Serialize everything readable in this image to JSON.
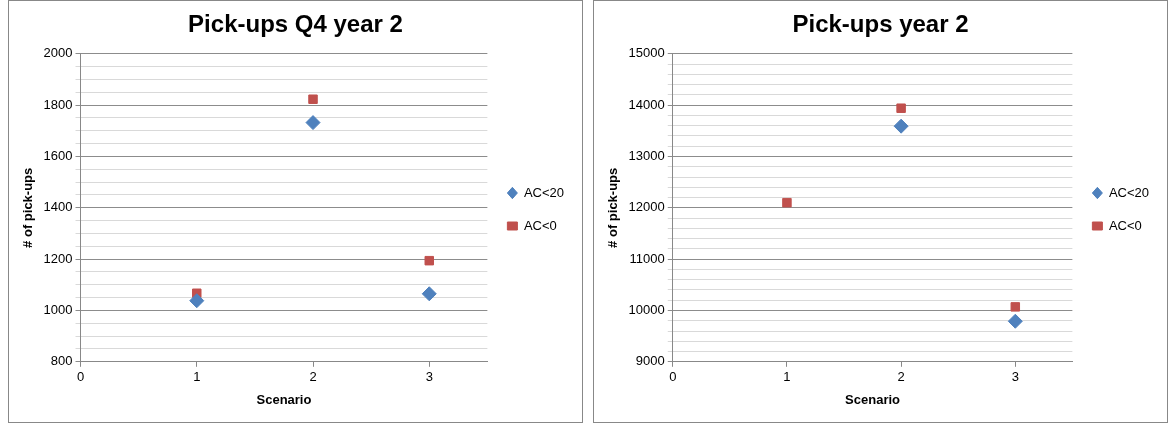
{
  "chart_data": [
    {
      "type": "scatter",
      "title": "Pick-ups Q4 year 2",
      "xlabel": "Scenario",
      "ylabel": "# of pick-ups",
      "x": [
        1,
        2,
        3
      ],
      "series": [
        {
          "name": "AC<20",
          "color": "#4f81bd",
          "marker": "diamond",
          "values": [
            1038,
            1732,
            1065
          ]
        },
        {
          "name": "AC<0",
          "color": "#c0504d",
          "marker": "square",
          "values": [
            1067,
            1823,
            1194
          ]
        }
      ],
      "xlim": [
        0,
        3.5
      ],
      "xticks": [
        0,
        1,
        2,
        3
      ],
      "ylim": [
        800,
        2000
      ],
      "yticks": [
        800,
        {
          "value": 850,
          "label": null
        },
        {
          "value": 900,
          "label": null
        },
        {
          "value": 950,
          "label": null
        },
        1000,
        {
          "value": 1050,
          "label": null
        },
        {
          "value": 1100,
          "label": null
        },
        {
          "value": 1150,
          "label": null
        },
        1200,
        {
          "value": 1250,
          "label": null
        },
        {
          "value": 1300,
          "label": null
        },
        {
          "value": 1350,
          "label": null
        },
        1400,
        {
          "value": 1450,
          "label": null
        },
        {
          "value": 1500,
          "label": null
        },
        {
          "value": 1550,
          "label": null
        },
        1600,
        {
          "value": 1650,
          "label": null
        },
        {
          "value": 1700,
          "label": null
        },
        {
          "value": 1750,
          "label": null
        },
        1800,
        {
          "value": 1850,
          "label": null
        },
        {
          "value": 1900,
          "label": null
        },
        {
          "value": 1950,
          "label": null
        },
        2000
      ],
      "grid": "y",
      "legend": "right"
    },
    {
      "type": "scatter",
      "title": "Pick-ups year 2",
      "xlabel": "Scenario",
      "ylabel": "# of pick-ups",
      "x": [
        1,
        2,
        3
      ],
      "series": [
        {
          "name": "AC<20",
          "color": "#4f81bd",
          "marker": "diamond",
          "values": [
            null,
            13590,
            9790
          ]
        },
        {
          "name": "AC<0",
          "color": "#c0504d",
          "marker": "square",
          "values": [
            12100,
            13940,
            10070
          ]
        }
      ],
      "xlim": [
        0,
        3.5
      ],
      "xticks": [
        0,
        1,
        2,
        3
      ],
      "ylim": [
        9000,
        15000
      ],
      "yticks": [
        9000,
        {
          "value": 9200,
          "label": null
        },
        {
          "value": 9400,
          "label": null
        },
        {
          "value": 9600,
          "label": null
        },
        {
          "value": 9800,
          "label": null
        },
        10000,
        {
          "value": 10200,
          "label": null
        },
        {
          "value": 10400,
          "label": null
        },
        {
          "value": 10600,
          "label": null
        },
        {
          "value": 10800,
          "label": null
        },
        11000,
        {
          "value": 11200,
          "label": null
        },
        {
          "value": 11400,
          "label": null
        },
        {
          "value": 11600,
          "label": null
        },
        {
          "value": 11800,
          "label": null
        },
        12000,
        {
          "value": 12200,
          "label": null
        },
        {
          "value": 12400,
          "label": null
        },
        {
          "value": 12600,
          "label": null
        },
        {
          "value": 12800,
          "label": null
        },
        13000,
        {
          "value": 13200,
          "label": null
        },
        {
          "value": 13400,
          "label": null
        },
        {
          "value": 13600,
          "label": null
        },
        {
          "value": 13800,
          "label": null
        },
        14000,
        {
          "value": 14200,
          "label": null
        },
        {
          "value": 14400,
          "label": null
        },
        {
          "value": 14600,
          "label": null
        },
        {
          "value": 14800,
          "label": null
        },
        15000
      ],
      "grid": "y",
      "legend": "right"
    }
  ]
}
